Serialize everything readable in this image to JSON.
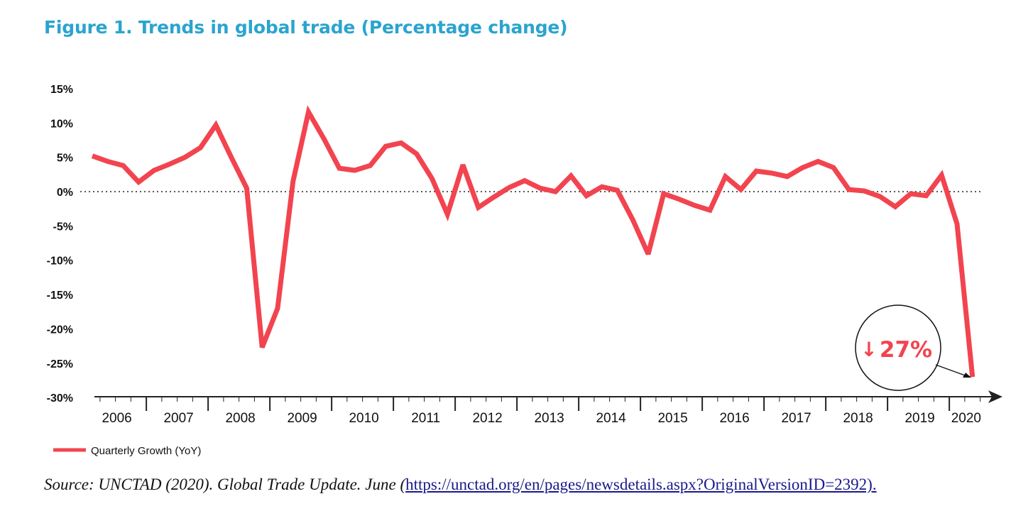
{
  "chart_data": {
    "type": "line",
    "title": "Figure 1. Trends in global trade (Percentage change)",
    "xlabel": "",
    "ylabel": "",
    "ylim": [
      -30,
      15
    ],
    "yticks": [
      15,
      10,
      5,
      0,
      -5,
      -10,
      -15,
      -20,
      -25,
      -30
    ],
    "ytick_labels": [
      "15%",
      "10%",
      "5%",
      "0%",
      "-5%",
      "-10%",
      "-15%",
      "-20%",
      "-25%",
      "-30%"
    ],
    "year_labels": [
      "2006",
      "2007",
      "2008",
      "2009",
      "2010",
      "2011",
      "2012",
      "2013",
      "2014",
      "2015",
      "2016",
      "2017",
      "2018",
      "2019",
      "2020"
    ],
    "reference_line": 0,
    "grid": false,
    "legend_position": "bottom-left",
    "series": [
      {
        "name": "Quarterly Growth (YoY)",
        "color": "#f2444f",
        "frequency": "quarterly",
        "start": "2006 Q1",
        "values": [
          5.2,
          4.4,
          3.8,
          1.4,
          3.1,
          4.0,
          5.0,
          6.4,
          9.7,
          5.0,
          0.5,
          -22.7,
          -17.0,
          1.5,
          11.6,
          7.7,
          3.4,
          3.1,
          3.8,
          6.6,
          7.1,
          5.5,
          1.9,
          -3.3,
          3.9,
          -2.3,
          -0.8,
          0.6,
          1.6,
          0.5,
          0.0,
          2.3,
          -0.6,
          0.7,
          0.2,
          -4.1,
          -9.1,
          -0.3,
          -1.1,
          -2.0,
          -2.7,
          2.2,
          0.3,
          3.0,
          2.7,
          2.2,
          3.5,
          4.4,
          3.5,
          0.3,
          0.1,
          -0.7,
          -2.2,
          -0.3,
          -0.6,
          2.4,
          -4.7,
          -27.0
        ]
      }
    ],
    "annotation": {
      "arrow": "↓",
      "text": "27%",
      "color": "#f2444f"
    }
  },
  "source": {
    "prefix": "Source: UNCTAD (2020). Global Trade Update. June (",
    "link": "https://unctad.org/en/pages/newsdetails.aspx?OriginalVersionID=2392)."
  }
}
